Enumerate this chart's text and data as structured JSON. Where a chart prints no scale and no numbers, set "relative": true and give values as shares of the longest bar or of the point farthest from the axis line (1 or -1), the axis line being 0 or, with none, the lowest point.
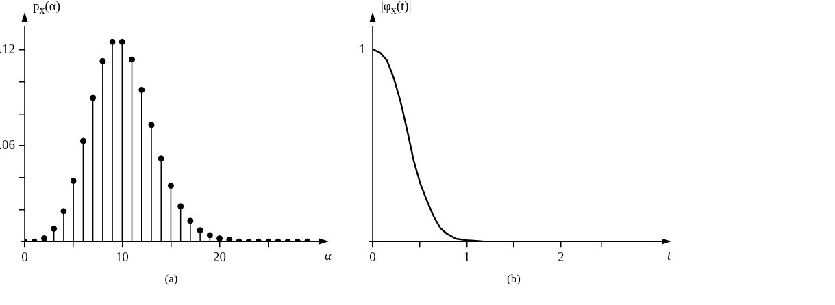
{
  "chart_data": [
    {
      "type": "lollipop",
      "ylabel": "p$_{x}$(α)",
      "xlabel": "α",
      "annotations": [
        "(a)"
      ],
      "marker": "circle",
      "color": "#000000",
      "x": [
        0,
        1,
        2,
        3,
        4,
        5,
        6,
        7,
        8,
        9,
        10,
        11,
        12,
        13,
        14,
        15,
        16,
        17,
        18,
        19,
        20,
        21,
        22,
        23,
        24,
        25,
        26,
        27,
        28,
        29
      ],
      "values": [
        0,
        0,
        0.002,
        0.008,
        0.019,
        0.038,
        0.063,
        0.09,
        0.113,
        0.125,
        0.125,
        0.114,
        0.095,
        0.073,
        0.052,
        0.035,
        0.022,
        0.013,
        0.007,
        0.004,
        0.002,
        0.001,
        0,
        0,
        0,
        0,
        0,
        0,
        0,
        0
      ],
      "xlim": [
        0,
        30.5
      ],
      "xticks": [
        0,
        {
          "value": 5,
          "label": null
        },
        10,
        {
          "value": 15,
          "label": null
        },
        20,
        {
          "value": 25,
          "label": null
        }
      ],
      "ylim": [
        0,
        0.135
      ],
      "yticks": [
        {
          "value": 0.02,
          "label": null
        },
        {
          "value": 0.04,
          "label": null
        },
        {
          "value": 0.06,
          "label": ".06"
        },
        {
          "value": 0.08,
          "label": null
        },
        {
          "value": 0.1,
          "label": null
        },
        {
          "value": 0.12,
          "label": ".12"
        }
      ]
    },
    {
      "type": "line",
      "ylabel": "|φ$_{x}$(t)|",
      "xlabel": "t",
      "annotations": [
        {
          "text": "1",
          "x": 0,
          "y": 1
        },
        "(b)"
      ],
      "marker": "none",
      "line_style": "solid",
      "color": "#000000",
      "relative": true,
      "x": [
        0,
        0.083,
        0.153,
        0.224,
        0.295,
        0.366,
        0.436,
        0.507,
        0.578,
        0.649,
        0.719,
        0.79,
        0.884,
        1.0,
        1.17,
        1.5,
        2.0,
        2.5,
        3.0
      ],
      "values": [
        1,
        0.98,
        0.94,
        0.85,
        0.73,
        0.58,
        0.42,
        0.3,
        0.21,
        0.13,
        0.07,
        0.04,
        0.015,
        0.007,
        0.001,
        0,
        0,
        0,
        0
      ],
      "xlim": [
        0,
        3.1
      ],
      "xticks": [
        0,
        {
          "value": 0.5,
          "label": null
        },
        1,
        {
          "value": 1.5,
          "label": null
        },
        2,
        {
          "value": 2.43,
          "label": null
        }
      ],
      "grid": false
    }
  ]
}
